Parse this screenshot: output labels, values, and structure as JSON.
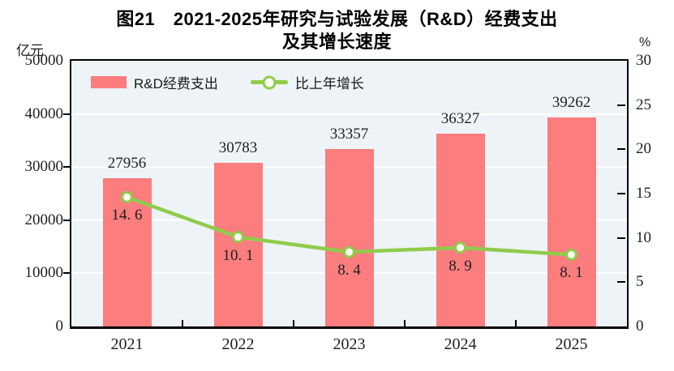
{
  "title": {
    "line1": "图21　2021-2025年研究与试验发展（R&D）经费支出",
    "line2": "及其增长速度"
  },
  "axes": {
    "left_unit": "亿元",
    "right_unit": "%",
    "left_ticks": [
      "0",
      "10000",
      "20000",
      "30000",
      "40000",
      "50000"
    ],
    "right_ticks": [
      "0",
      "5",
      "10",
      "15",
      "20",
      "25",
      "30"
    ]
  },
  "chart_data": {
    "type": "combo-bar-line",
    "title": "图21 2021-2025年研究与试验发展（R&D）经费支出及其增长速度",
    "categories": [
      "2021",
      "2022",
      "2023",
      "2024",
      "2025"
    ],
    "series": [
      {
        "name": "R&D经费支出",
        "type": "bar",
        "axis": "left",
        "unit": "亿元",
        "values": [
          27956,
          30783,
          33357,
          36327,
          39262
        ],
        "labels": [
          "27956",
          "30783",
          "33357",
          "36327",
          "39262"
        ],
        "color": "#fb7d7e"
      },
      {
        "name": "比上年增长",
        "type": "line",
        "axis": "right",
        "unit": "%",
        "values": [
          14.6,
          10.1,
          8.4,
          8.9,
          8.1
        ],
        "labels": [
          "14. 6",
          "10. 1",
          "8. 4",
          "8. 9",
          "8. 1"
        ],
        "color": "#90cb4c",
        "marker": "circle",
        "marker_fill": "#fcfdf3"
      }
    ],
    "ylim_left": [
      0,
      50000
    ],
    "ylim_right": [
      0,
      30
    ],
    "left_tick_step": 10000,
    "right_tick_step": 5,
    "grid": true,
    "gridline_color": "#ffffff",
    "plot_background": "#edf3f6",
    "legend_position": "top-left-inside"
  }
}
